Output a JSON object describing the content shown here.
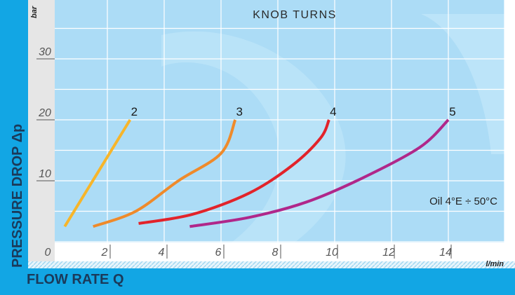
{
  "chart_data": {
    "type": "line",
    "title": "KNOB TURNS",
    "xlabel": "FLOW RATE Q",
    "ylabel": "PRESSURE DROP Δp",
    "x_unit": "l/min",
    "y_unit": "bar",
    "xlim": [
      0,
      18
    ],
    "ylim": [
      0,
      40
    ],
    "x_ticks": [
      "0",
      "2",
      "4",
      "6",
      "8",
      "10",
      "12",
      "14"
    ],
    "y_ticks": [
      "10",
      "20",
      "30"
    ],
    "grid": true,
    "annotation": "Oil 4°E ÷ 50°C",
    "series": [
      {
        "name": "2",
        "color": "#f7b52a",
        "points": [
          [
            0.5,
            2.5
          ],
          [
            2.8,
            20
          ]
        ]
      },
      {
        "name": "3",
        "color": "#ef8a2a",
        "points": [
          [
            1.5,
            2.5
          ],
          [
            3,
            5
          ],
          [
            4.5,
            10
          ],
          [
            6,
            14.5
          ],
          [
            6.5,
            20
          ]
        ]
      },
      {
        "name": "4",
        "color": "#e2232a",
        "points": [
          [
            3.1,
            3
          ],
          [
            5,
            4.5
          ],
          [
            7,
            8
          ],
          [
            8.5,
            12.5
          ],
          [
            9.5,
            17
          ],
          [
            9.8,
            20
          ]
        ]
      },
      {
        "name": "5",
        "color": "#b0278a",
        "points": [
          [
            4.9,
            2.5
          ],
          [
            7,
            4
          ],
          [
            9,
            6.5
          ],
          [
            11,
            10.5
          ],
          [
            13,
            15.5
          ],
          [
            14,
            20
          ]
        ]
      }
    ],
    "colors": {
      "plot_bg": "#acdcf6",
      "axis_band": "#12a6e4",
      "left_column": "#e6e6e6"
    }
  }
}
